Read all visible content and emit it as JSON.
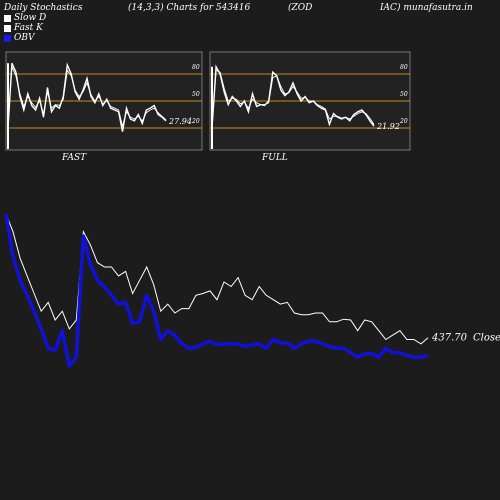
{
  "header": {
    "left": "Daily Stochastics",
    "params": "(14,3,3) Charts for 543416",
    "name_a": "(ZOD",
    "name_b": "IAC) munafasutra.in"
  },
  "legend": [
    {
      "label": "Slow  D",
      "color": "#ffffff"
    },
    {
      "label": "Fast K",
      "color": "#ffffff"
    },
    {
      "label": "OBV",
      "color": "#1a1aee"
    }
  ],
  "colors": {
    "price": "#ffffff",
    "obv": "#1010d8",
    "bands": "#c8851a",
    "panel_bg": "#222222",
    "panel_border": "#777777"
  },
  "chart_data": [
    {
      "type": "line",
      "panel": "FAST",
      "ylim": [
        0,
        100
      ],
      "levels": [
        20,
        50,
        80
      ],
      "level_labels": [
        "80",
        "50",
        "20"
      ],
      "last_value_label": "27.94",
      "series": [
        {
          "values": [
            20,
            92,
            82,
            55,
            40,
            58,
            45,
            40,
            53,
            32,
            65,
            38,
            45,
            42,
            55,
            90,
            80,
            60,
            52,
            62,
            75,
            55,
            48,
            58,
            45,
            52,
            42,
            40,
            38,
            16,
            42,
            30,
            28,
            35,
            25,
            40,
            42,
            45,
            35,
            32,
            28
          ]
        },
        {
          "values": [
            20,
            88,
            78,
            58,
            44,
            55,
            48,
            43,
            50,
            36,
            60,
            42,
            46,
            45,
            52,
            84,
            78,
            62,
            55,
            60,
            70,
            57,
            50,
            55,
            47,
            50,
            44,
            42,
            40,
            22,
            38,
            32,
            30,
            33,
            28,
            37,
            40,
            42,
            37,
            33,
            29
          ]
        }
      ]
    },
    {
      "type": "line",
      "panel": "FULL",
      "ylim": [
        0,
        100
      ],
      "levels": [
        20,
        50,
        80
      ],
      "level_labels": [
        "80",
        "50",
        "20"
      ],
      "last_value_label": "21.92",
      "series": [
        {
          "values": [
            20,
            88,
            80,
            60,
            46,
            55,
            50,
            44,
            50,
            38,
            58,
            44,
            46,
            45,
            50,
            82,
            78,
            62,
            56,
            60,
            70,
            58,
            50,
            55,
            48,
            50,
            45,
            42,
            40,
            24,
            36,
            32,
            30,
            32,
            28,
            35,
            38,
            40,
            35,
            28,
            22
          ]
        },
        {
          "values": [
            20,
            84,
            82,
            64,
            50,
            53,
            52,
            47,
            49,
            42,
            52,
            48,
            46,
            46,
            48,
            76,
            78,
            66,
            58,
            59,
            66,
            60,
            53,
            54,
            50,
            50,
            46,
            44,
            41,
            30,
            33,
            33,
            31,
            32,
            30,
            33,
            36,
            38,
            36,
            31,
            24
          ]
        }
      ]
    },
    {
      "type": "line",
      "panel": "price-obv",
      "last_price_label": "437.70",
      "close_label": "Close",
      "series": [
        {
          "values": [
            580,
            560,
            530,
            510,
            490,
            470,
            480,
            460,
            470,
            450,
            460,
            560,
            545,
            525,
            520,
            520,
            510,
            515,
            490,
            505,
            520,
            500,
            470,
            478,
            468,
            473,
            473,
            488,
            490,
            493,
            483,
            503,
            498,
            508,
            488,
            483,
            498,
            488,
            483,
            478,
            480,
            468,
            466,
            466,
            468,
            468,
            458,
            458,
            461,
            460,
            448,
            460,
            458,
            448,
            438,
            443,
            448,
            438,
            438,
            433,
            440
          ]
        },
        {
          "values": [
            580,
            532,
            505,
            488,
            470,
            450,
            428,
            426,
            448,
            408,
            418,
            555,
            523,
            505,
            498,
            488,
            478,
            480,
            456,
            458,
            488,
            470,
            438,
            448,
            443,
            433,
            428,
            429,
            433,
            436,
            432,
            433,
            433,
            433,
            430,
            432,
            433,
            428,
            438,
            434,
            434,
            428,
            433,
            436,
            436,
            433,
            430,
            428,
            428,
            423,
            418,
            422,
            422,
            418,
            428,
            423,
            423,
            420,
            418,
            418,
            420
          ]
        }
      ]
    }
  ]
}
